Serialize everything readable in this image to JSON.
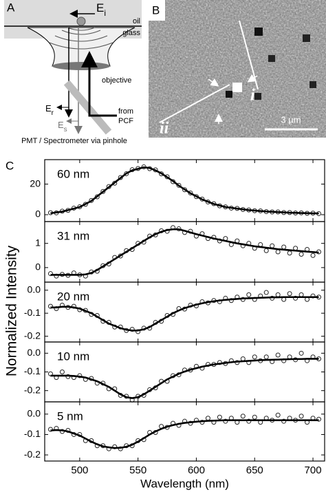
{
  "figure": {
    "panel_a": {
      "label": "A",
      "e_incident": {
        "main": "E",
        "sub": "i"
      },
      "oil": "oil",
      "glass": "glass",
      "objective": "objective",
      "e_reflected": {
        "main": "E",
        "sub": "r"
      },
      "e_scattered": {
        "main": "E",
        "sub": "s"
      },
      "source": [
        "from",
        "PCF"
      ],
      "detector": "PMT / Spectrometer via pinhole"
    },
    "panel_b": {
      "label": "B",
      "line_i": "i",
      "line_ii": "ii",
      "scale_bar": "3 µm"
    },
    "panel_c": {
      "label": "C",
      "ylabel": "Normalized Intensity"
    }
  },
  "chart_data": [
    {
      "type": "scatter",
      "label": "60 nm",
      "xlim": [
        470,
        710
      ],
      "ylim": [
        -4.5,
        36
      ],
      "yticks": [
        0,
        20
      ],
      "x": [
        475,
        480,
        485,
        490,
        495,
        500,
        505,
        510,
        515,
        520,
        525,
        530,
        535,
        540,
        545,
        550,
        555,
        560,
        565,
        570,
        575,
        580,
        585,
        590,
        595,
        600,
        605,
        610,
        615,
        620,
        625,
        630,
        635,
        640,
        645,
        650,
        655,
        660,
        665,
        670,
        675,
        680,
        685,
        690,
        695,
        700,
        705
      ],
      "series": [
        {
          "color": "#222",
          "marker": "circle",
          "values": [
            1.3,
            1.2,
            2.3,
            2.8,
            4.3,
            5.2,
            6.8,
            9.3,
            11.7,
            15.2,
            18.4,
            20.6,
            24.3,
            26.8,
            29.4,
            30.2,
            31.3,
            30.1,
            29.3,
            26.7,
            24.8,
            21.6,
            19.2,
            16.3,
            14.2,
            11.8,
            10.2,
            8.3,
            7.2,
            5.8,
            5.1,
            4.3,
            4.1,
            3.4,
            3.1,
            2.6,
            2.5,
            2.0,
            1.8,
            1.8,
            1.4,
            1.4,
            1.1,
            1.2,
            0.9,
            1.0,
            0.7
          ]
        },
        {
          "color": "#000",
          "line": "solid",
          "values": [
            1,
            1.5,
            2,
            3,
            4,
            5,
            7,
            9,
            12,
            15,
            18,
            21,
            24,
            27,
            29,
            30,
            31,
            30.5,
            29,
            27,
            24.5,
            22,
            19,
            16.5,
            14,
            12,
            10,
            8.5,
            7,
            6,
            5,
            4.5,
            4,
            3.5,
            3,
            2.7,
            2.4,
            2.1,
            1.9,
            1.7,
            1.5,
            1.3,
            1.2,
            1.1,
            1,
            0.9,
            0.8
          ]
        }
      ]
    },
    {
      "type": "scatter",
      "label": "31 nm",
      "xlim": [
        470,
        710
      ],
      "ylim": [
        -0.6,
        1.9
      ],
      "yticks": [
        0,
        1
      ],
      "x": [
        475,
        480,
        485,
        490,
        495,
        500,
        505,
        510,
        515,
        520,
        525,
        530,
        535,
        540,
        545,
        550,
        555,
        560,
        565,
        570,
        575,
        580,
        585,
        590,
        595,
        600,
        605,
        610,
        615,
        620,
        625,
        630,
        635,
        640,
        645,
        650,
        655,
        660,
        665,
        670,
        675,
        680,
        685,
        690,
        695,
        700,
        705
      ],
      "series": [
        {
          "color": "#222",
          "marker": "circle",
          "values": [
            -0.25,
            -0.35,
            -0.28,
            -0.32,
            -0.22,
            -0.3,
            -0.35,
            -0.18,
            -0.15,
            0.08,
            0.15,
            0.42,
            0.48,
            0.7,
            0.75,
            1.0,
            1.05,
            1.3,
            1.35,
            1.52,
            1.5,
            1.65,
            1.6,
            1.45,
            1.5,
            1.3,
            1.4,
            1.2,
            1.25,
            1.1,
            1.2,
            0.95,
            1.1,
            0.9,
            1.0,
            0.8,
            0.95,
            0.7,
            0.9,
            0.65,
            0.85,
            0.6,
            0.8,
            0.55,
            0.75,
            0.5,
            0.65
          ]
        },
        {
          "color": "#000",
          "line": "solid",
          "values": [
            -0.3,
            -0.3,
            -0.3,
            -0.3,
            -0.3,
            -0.3,
            -0.28,
            -0.22,
            -0.1,
            0.05,
            0.2,
            0.35,
            0.5,
            0.65,
            0.8,
            0.95,
            1.1,
            1.25,
            1.38,
            1.48,
            1.55,
            1.58,
            1.58,
            1.52,
            1.45,
            1.38,
            1.32,
            1.26,
            1.2,
            1.15,
            1.1,
            1.05,
            1.0,
            0.96,
            0.92,
            0.88,
            0.85,
            0.82,
            0.79,
            0.76,
            0.74,
            0.72,
            0.7,
            0.68,
            0.66,
            0.64,
            0.62
          ]
        }
      ]
    },
    {
      "type": "scatter",
      "label": "20 nm",
      "xlim": [
        470,
        710
      ],
      "ylim": [
        -0.225,
        0.035
      ],
      "yticks": [
        {
          "value": 0,
          "label": "0.0"
        },
        -0.1,
        -0.2
      ],
      "x": [
        475,
        480,
        485,
        490,
        495,
        500,
        505,
        510,
        515,
        520,
        525,
        530,
        535,
        540,
        545,
        550,
        555,
        560,
        565,
        570,
        575,
        580,
        585,
        590,
        595,
        600,
        605,
        610,
        615,
        620,
        625,
        630,
        635,
        640,
        645,
        650,
        655,
        660,
        665,
        670,
        675,
        680,
        685,
        690,
        695,
        700,
        705
      ],
      "series": [
        {
          "color": "#222",
          "marker": "circle",
          "values": [
            -0.07,
            -0.08,
            -0.065,
            -0.075,
            -0.07,
            -0.085,
            -0.088,
            -0.105,
            -0.11,
            -0.135,
            -0.14,
            -0.16,
            -0.16,
            -0.175,
            -0.17,
            -0.18,
            -0.165,
            -0.165,
            -0.14,
            -0.135,
            -0.11,
            -0.105,
            -0.08,
            -0.082,
            -0.065,
            -0.068,
            -0.05,
            -0.055,
            -0.045,
            -0.05,
            -0.035,
            -0.045,
            -0.03,
            -0.04,
            -0.02,
            -0.04,
            -0.025,
            -0.01,
            -0.035,
            -0.02,
            -0.04,
            -0.015,
            -0.035,
            -0.02,
            -0.04,
            -0.025,
            -0.03
          ]
        },
        {
          "color": "#000",
          "line": "solid",
          "values": [
            -0.075,
            -0.075,
            -0.072,
            -0.072,
            -0.075,
            -0.08,
            -0.09,
            -0.1,
            -0.115,
            -0.13,
            -0.145,
            -0.155,
            -0.165,
            -0.172,
            -0.175,
            -0.175,
            -0.17,
            -0.16,
            -0.145,
            -0.13,
            -0.115,
            -0.1,
            -0.088,
            -0.078,
            -0.07,
            -0.063,
            -0.057,
            -0.052,
            -0.048,
            -0.045,
            -0.042,
            -0.04,
            -0.038,
            -0.036,
            -0.035,
            -0.034,
            -0.033,
            -0.032,
            -0.031,
            -0.031,
            -0.03,
            -0.03,
            -0.03,
            -0.03,
            -0.03,
            -0.03,
            -0.03
          ]
        }
      ]
    },
    {
      "type": "scatter",
      "label": "10 nm",
      "xlim": [
        470,
        710
      ],
      "ylim": [
        -0.26,
        0.06
      ],
      "yticks": [
        {
          "value": 0,
          "label": "0.0"
        },
        -0.1,
        -0.2
      ],
      "x": [
        475,
        480,
        485,
        490,
        495,
        500,
        505,
        510,
        515,
        520,
        525,
        530,
        535,
        540,
        545,
        550,
        555,
        560,
        565,
        570,
        575,
        580,
        585,
        590,
        595,
        600,
        605,
        610,
        615,
        620,
        625,
        630,
        635,
        640,
        645,
        650,
        655,
        660,
        665,
        670,
        675,
        680,
        685,
        690,
        695,
        700,
        705
      ],
      "series": [
        {
          "color": "#222",
          "marker": "circle",
          "values": [
            -0.11,
            -0.13,
            -0.1,
            -0.125,
            -0.13,
            -0.12,
            -0.14,
            -0.135,
            -0.16,
            -0.16,
            -0.19,
            -0.19,
            -0.225,
            -0.23,
            -0.25,
            -0.23,
            -0.225,
            -0.195,
            -0.185,
            -0.15,
            -0.15,
            -0.12,
            -0.115,
            -0.09,
            -0.09,
            -0.07,
            -0.08,
            -0.06,
            -0.06,
            -0.05,
            -0.055,
            -0.04,
            -0.05,
            -0.03,
            -0.05,
            -0.02,
            -0.04,
            -0.02,
            -0.045,
            -0.01,
            -0.04,
            -0.02,
            -0.035,
            0.0,
            -0.04,
            -0.02,
            -0.03
          ]
        },
        {
          "color": "#000",
          "line": "solid",
          "values": [
            -0.12,
            -0.12,
            -0.12,
            -0.12,
            -0.122,
            -0.125,
            -0.13,
            -0.14,
            -0.15,
            -0.165,
            -0.18,
            -0.2,
            -0.22,
            -0.235,
            -0.24,
            -0.235,
            -0.22,
            -0.2,
            -0.18,
            -0.16,
            -0.14,
            -0.125,
            -0.11,
            -0.098,
            -0.088,
            -0.08,
            -0.072,
            -0.066,
            -0.06,
            -0.056,
            -0.052,
            -0.048,
            -0.045,
            -0.043,
            -0.041,
            -0.039,
            -0.037,
            -0.036,
            -0.035,
            -0.034,
            -0.033,
            -0.032,
            -0.031,
            -0.031,
            -0.03,
            -0.03,
            -0.03
          ]
        }
      ]
    },
    {
      "type": "scatter",
      "label": "5 nm",
      "xlim": [
        470,
        710
      ],
      "ylim": [
        -0.23,
        0.06
      ],
      "yticks": [
        {
          "value": 0,
          "label": "0.0"
        },
        -0.1,
        -0.2
      ],
      "xticks": [
        500,
        550,
        600,
        650,
        700
      ],
      "xlabel": "Wavelength (nm)",
      "x": [
        475,
        480,
        485,
        490,
        495,
        500,
        505,
        510,
        515,
        520,
        525,
        530,
        535,
        540,
        545,
        550,
        555,
        560,
        565,
        570,
        575,
        580,
        585,
        590,
        595,
        600,
        605,
        610,
        615,
        620,
        625,
        630,
        635,
        640,
        645,
        650,
        655,
        660,
        665,
        670,
        675,
        680,
        685,
        690,
        695,
        700,
        705
      ],
      "series": [
        {
          "color": "#222",
          "marker": "circle",
          "values": [
            -0.075,
            -0.07,
            -0.085,
            -0.08,
            -0.1,
            -0.1,
            -0.13,
            -0.13,
            -0.155,
            -0.155,
            -0.17,
            -0.16,
            -0.17,
            -0.155,
            -0.155,
            -0.13,
            -0.125,
            -0.09,
            -0.09,
            -0.06,
            -0.065,
            -0.045,
            -0.055,
            -0.035,
            -0.045,
            -0.03,
            -0.04,
            -0.02,
            -0.04,
            -0.015,
            -0.035,
            -0.02,
            -0.04,
            -0.01,
            -0.035,
            -0.015,
            -0.04,
            -0.02,
            -0.03,
            -0.005,
            -0.035,
            -0.02,
            -0.03,
            -0.01,
            -0.04,
            -0.02,
            -0.025
          ]
        },
        {
          "color": "#000",
          "line": "solid",
          "values": [
            -0.08,
            -0.078,
            -0.08,
            -0.085,
            -0.095,
            -0.105,
            -0.12,
            -0.135,
            -0.148,
            -0.158,
            -0.163,
            -0.166,
            -0.165,
            -0.16,
            -0.15,
            -0.135,
            -0.118,
            -0.1,
            -0.085,
            -0.072,
            -0.062,
            -0.054,
            -0.048,
            -0.043,
            -0.04,
            -0.037,
            -0.035,
            -0.033,
            -0.032,
            -0.031,
            -0.03,
            -0.03,
            -0.03,
            -0.03,
            -0.03,
            -0.03,
            -0.03,
            -0.03,
            -0.03,
            -0.03,
            -0.03,
            -0.03,
            -0.03,
            -0.03,
            -0.03,
            -0.03,
            -0.03
          ]
        }
      ]
    }
  ]
}
